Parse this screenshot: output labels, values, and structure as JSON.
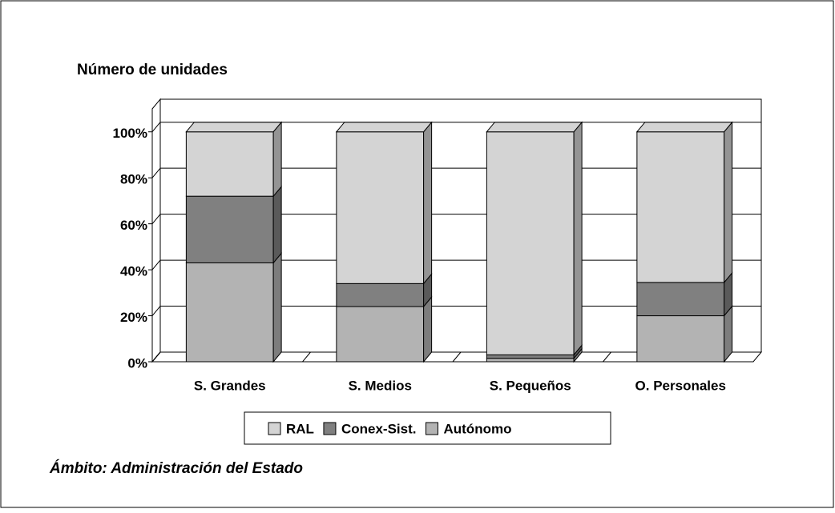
{
  "chart_data": {
    "type": "bar3d_stacked",
    "title": "Número de unidades",
    "categories": [
      "S. Grandes",
      "S. Medios",
      "S. Pequeños",
      "O. Personales"
    ],
    "series": [
      {
        "name": "RAL",
        "color": "#d4d4d4",
        "values": [
          28,
          66,
          97,
          65.5
        ]
      },
      {
        "name": "Conex-Sist.",
        "color": "#808080",
        "values": [
          29,
          10,
          1.5,
          14.5
        ]
      },
      {
        "name": "Autónomo",
        "color": "#b3b3b3",
        "values": [
          43,
          24,
          1.5,
          20
        ]
      }
    ],
    "ylim": [
      0,
      110
    ],
    "yticks": [
      {
        "value": 0,
        "label": "0%"
      },
      {
        "value": 20,
        "label": "20%"
      },
      {
        "value": 40,
        "label": "40%"
      },
      {
        "value": 60,
        "label": "60%"
      },
      {
        "value": 80,
        "label": "80%"
      },
      {
        "value": 100,
        "label": "100%"
      }
    ],
    "grid": true,
    "annotation": "Ámbito: Administración del Estado"
  }
}
